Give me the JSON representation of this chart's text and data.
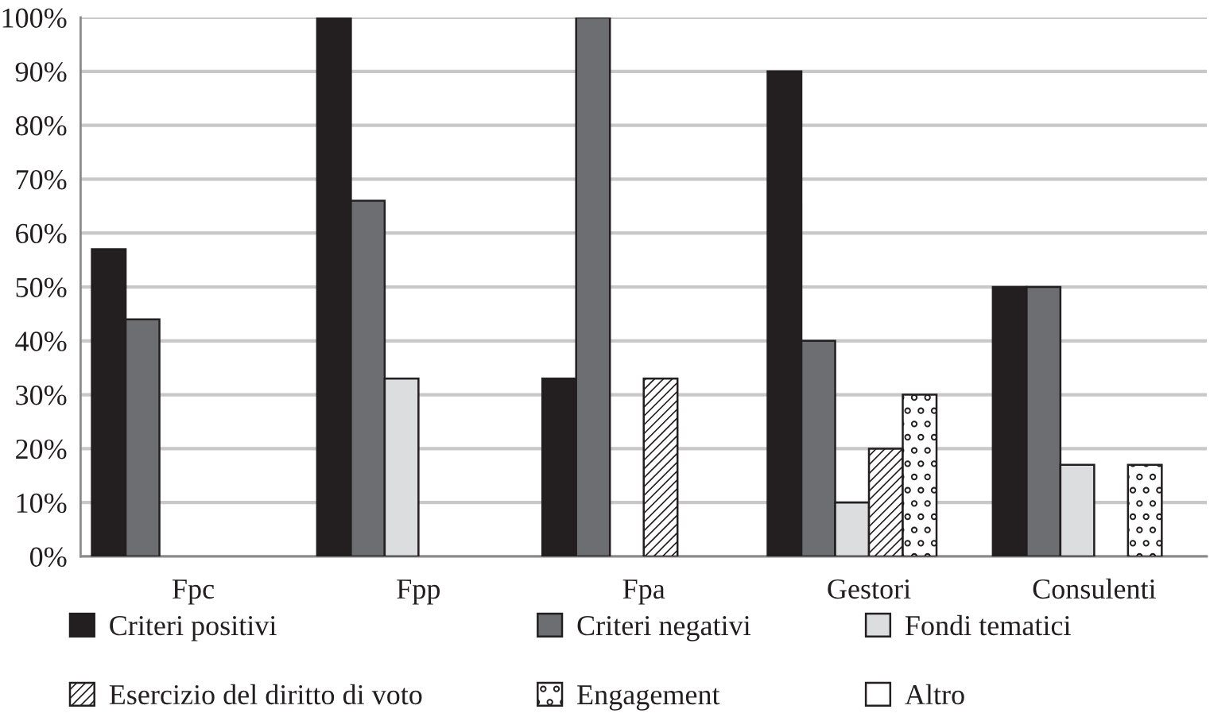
{
  "chart_data": {
    "type": "bar",
    "categories": [
      "Fpc",
      "Fpp",
      "Fpa",
      "Gestori",
      "Consulenti"
    ],
    "series": [
      {
        "name": "Criteri positivi",
        "color": "#231f20",
        "values": [
          57,
          100,
          33,
          90,
          50
        ]
      },
      {
        "name": "Criteri negativi",
        "color": "#6d6e71",
        "values": [
          44,
          66,
          100,
          40,
          50
        ]
      },
      {
        "name": "Fondi tematici",
        "color": "#dcdddf",
        "values": [
          null,
          33,
          null,
          10,
          17
        ]
      },
      {
        "name": "Esercizio del diritto di voto",
        "color": "#231f20",
        "values": [
          null,
          null,
          33,
          20,
          null
        ]
      },
      {
        "name": "Engagement",
        "color": "#231f20",
        "values": [
          null,
          null,
          null,
          30,
          17
        ]
      },
      {
        "name": "Altro",
        "color": "#ffffff",
        "values": [
          null,
          null,
          null,
          null,
          null
        ]
      }
    ],
    "ylim": [
      0,
      100
    ],
    "yticks": [
      {
        "value": 0,
        "label": "0%"
      },
      {
        "value": 10,
        "label": "10%"
      },
      {
        "value": 20,
        "label": "20%"
      },
      {
        "value": 30,
        "label": "30%"
      },
      {
        "value": 40,
        "label": "40%"
      },
      {
        "value": 50,
        "label": "50%"
      },
      {
        "value": 60,
        "label": "60%"
      },
      {
        "value": 70,
        "label": "70%"
      },
      {
        "value": 80,
        "label": "80%"
      },
      {
        "value": 90,
        "label": "90%"
      },
      {
        "value": 100,
        "label": "100%"
      }
    ],
    "grid": "y",
    "legend": "bottom"
  }
}
